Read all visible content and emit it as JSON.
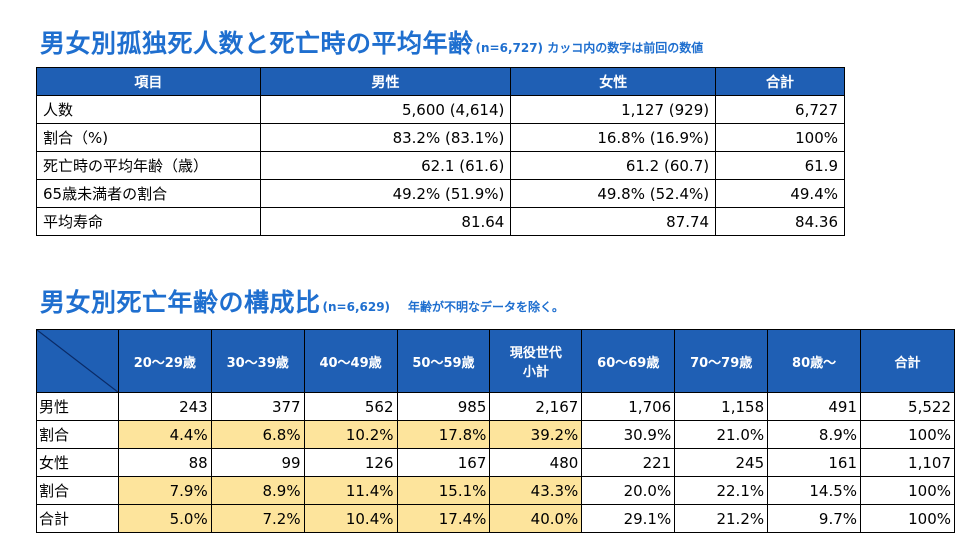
{
  "title1": {
    "main": "男女別孤独死人数と死亡時の平均年齢",
    "sub": "(n=6,727) カッコ内の数字は前回の数値"
  },
  "table1": {
    "headers": [
      "項目",
      "男性",
      "女性",
      "合計"
    ],
    "rows": [
      [
        "人数",
        "5,600 (4,614)",
        "1,127 (929)",
        "6,727"
      ],
      [
        "割合（%)",
        "83.2% (83.1%)",
        "16.8% (16.9%)",
        "100%"
      ],
      [
        "死亡時の平均年齢（歳）",
        "62.1 (61.6)",
        "61.2 (60.7)",
        "61.9"
      ],
      [
        "65歳未満者の割合",
        "49.2% (51.9%)",
        "49.8% (52.4%)",
        "49.4%"
      ],
      [
        "平均寿命",
        "81.64",
        "87.74",
        "84.36"
      ]
    ]
  },
  "title2": {
    "main": "男女別死亡年齢の構成比",
    "sub": "(n=6,629)",
    "note": "年齢が不明なデータを除く。"
  },
  "table2": {
    "headers": [
      "20～29歳",
      "30～39歳",
      "40～49歳",
      "50～59歳",
      "現役世代",
      "小計",
      "60～69歳",
      "70～79歳",
      "80歳～",
      "合計"
    ],
    "rows": [
      [
        "男性",
        "243",
        "377",
        "562",
        "985",
        "2,167",
        "1,706",
        "1,158",
        "491",
        "5,522"
      ],
      [
        "割合",
        "4.4%",
        "6.8%",
        "10.2%",
        "17.8%",
        "39.2%",
        "30.9%",
        "21.0%",
        "8.9%",
        "100%"
      ],
      [
        "女性",
        "88",
        "99",
        "126",
        "167",
        "480",
        "221",
        "245",
        "161",
        "1,107"
      ],
      [
        "割合",
        "7.9%",
        "8.9%",
        "11.4%",
        "15.1%",
        "43.3%",
        "20.0%",
        "22.1%",
        "14.5%",
        "100%"
      ],
      [
        "合計",
        "5.0%",
        "7.2%",
        "10.4%",
        "17.4%",
        "40.0%",
        "29.1%",
        "21.2%",
        "9.7%",
        "100%"
      ]
    ]
  },
  "colors": {
    "accent": "#1f6fcf",
    "header_bg": "#1f5fb4",
    "highlight": "#fde49c"
  }
}
